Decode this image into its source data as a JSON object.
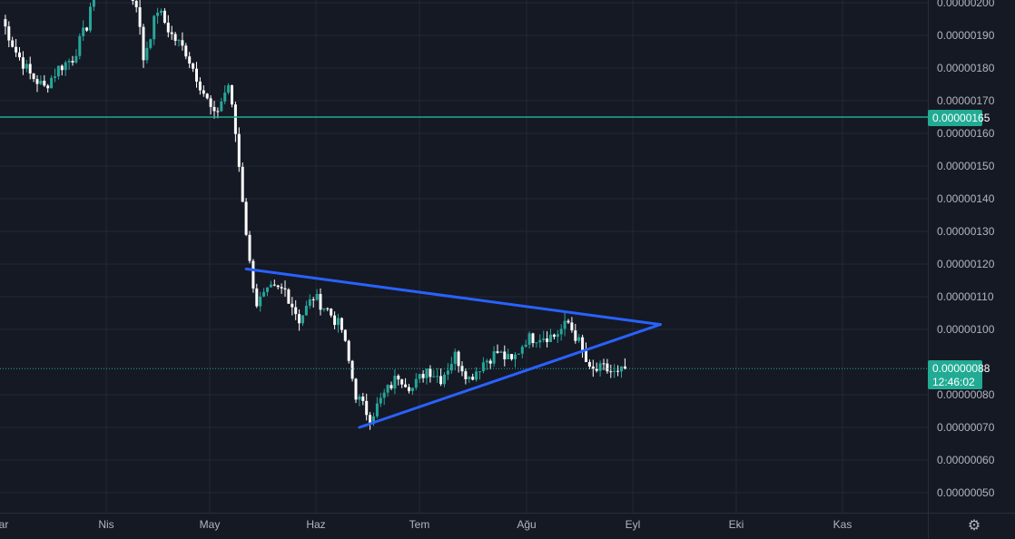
{
  "chart_data": {
    "type": "candlestick",
    "y_ticks": [
      "0.00000200",
      "0.00000190",
      "0.00000180",
      "0.00000170",
      "0.00000160",
      "0.00000150",
      "0.00000140",
      "0.00000130",
      "0.00000120",
      "0.00000110",
      "0.00000100",
      "0.00000080",
      "0.00000070",
      "0.00000060",
      "0.00000050"
    ],
    "y_tick_values": [
      200,
      190,
      180,
      170,
      160,
      150,
      140,
      130,
      120,
      110,
      100,
      80,
      70,
      60,
      50
    ],
    "x_months": [
      "ar",
      "Nis",
      "May",
      "Haz",
      "Tem",
      "Ağu",
      "Eyl",
      "Eki",
      "Kas"
    ],
    "y_range_scaled": [
      45,
      205
    ],
    "unit_scale_note": "values in units of 1e-9",
    "horizontal_line": {
      "label": "0.00000165",
      "value": 165,
      "color": "#22ab94"
    },
    "last_price": {
      "label": "0.00000088",
      "countdown": "12:46:02",
      "value": 88,
      "color": "#22ab94"
    },
    "triangle": {
      "color": "#2962ff",
      "upper_line": [
        {
          "date_index": 69,
          "value": 118.5
        },
        {
          "date_index": 186,
          "value": 101.5
        }
      ],
      "lower_line": [
        {
          "date_index": 101,
          "value": 70
        },
        {
          "date_index": 186,
          "value": 101.5
        }
      ]
    },
    "candles": {
      "up_color": "#26a69a",
      "down_color": "#ffffff",
      "anchor_closes": [
        [
          0,
          195
        ],
        [
          4,
          185
        ],
        [
          8,
          178
        ],
        [
          12,
          174
        ],
        [
          16,
          180
        ],
        [
          20,
          183
        ],
        [
          24,
          193
        ],
        [
          26,
          205
        ],
        [
          30,
          205
        ],
        [
          34,
          205
        ],
        [
          38,
          200
        ],
        [
          40,
          183
        ],
        [
          44,
          198
        ],
        [
          48,
          190
        ],
        [
          52,
          185
        ],
        [
          56,
          175
        ],
        [
          60,
          165
        ],
        [
          64,
          175
        ],
        [
          66,
          160
        ],
        [
          68,
          140
        ],
        [
          70,
          120
        ],
        [
          72,
          108
        ],
        [
          76,
          112
        ],
        [
          80,
          112
        ],
        [
          84,
          103
        ],
        [
          88,
          110
        ],
        [
          92,
          106
        ],
        [
          96,
          100
        ],
        [
          100,
          80
        ],
        [
          104,
          73
        ],
        [
          108,
          80
        ],
        [
          112,
          86
        ],
        [
          116,
          82
        ],
        [
          120,
          88
        ],
        [
          124,
          85
        ],
        [
          128,
          92
        ],
        [
          132,
          85
        ],
        [
          136,
          90
        ],
        [
          140,
          93
        ],
        [
          144,
          90
        ],
        [
          148,
          97
        ],
        [
          152,
          98
        ],
        [
          156,
          98
        ],
        [
          160,
          102
        ],
        [
          163,
          96
        ],
        [
          166,
          87
        ],
        [
          170,
          88
        ],
        [
          174,
          86
        ],
        [
          176,
          88
        ]
      ]
    }
  },
  "badges": {
    "line_label": "0.00000165",
    "last_price_label": "0.00000088",
    "countdown": "12:46:02"
  },
  "icons": {
    "settings": "gear-icon"
  }
}
